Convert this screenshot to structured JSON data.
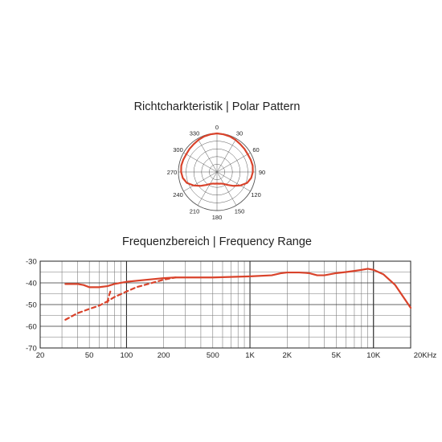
{
  "polar": {
    "title": "Richtcharkteristik | Polar Pattern",
    "angle_labels": [
      "0",
      "30",
      "60",
      "90",
      "120",
      "150",
      "180",
      "210",
      "240",
      "270",
      "300",
      "330"
    ],
    "chart_data": {
      "type": "line",
      "subtype": "polar",
      "series_color": "#d9432b",
      "angles_deg": [
        0,
        10,
        20,
        30,
        40,
        50,
        60,
        70,
        80,
        90,
        100,
        110,
        120,
        130,
        140,
        150,
        160,
        170,
        180,
        190,
        200,
        210,
        220,
        230,
        240,
        250,
        260,
        270,
        280,
        290,
        300,
        310,
        320,
        330,
        340,
        350
      ],
      "radius_frac": [
        1.0,
        0.99,
        0.98,
        0.96,
        0.94,
        0.93,
        0.92,
        0.93,
        0.94,
        0.93,
        0.9,
        0.83,
        0.7,
        0.56,
        0.44,
        0.36,
        0.32,
        0.31,
        0.3,
        0.31,
        0.32,
        0.36,
        0.44,
        0.56,
        0.7,
        0.83,
        0.9,
        0.93,
        0.94,
        0.93,
        0.92,
        0.93,
        0.94,
        0.96,
        0.98,
        0.99
      ],
      "rings": 5
    }
  },
  "freq": {
    "title": "Frequenzbereich | Frequency Range",
    "chart_data": {
      "type": "line",
      "xscale": "log",
      "xlim": [
        20,
        20000
      ],
      "ylim": [
        -70,
        -30
      ],
      "grid": true,
      "x_tick_values": [
        20,
        50,
        100,
        200,
        500,
        1000,
        2000,
        5000,
        10000,
        20000
      ],
      "x_tick_labels": [
        "20",
        "50",
        "100",
        "200",
        "500",
        "1K",
        "2K",
        "5K",
        "10K",
        "20KHz"
      ],
      "y_tick_values": [
        -30,
        -40,
        -50,
        -60,
        -70
      ],
      "y_tick_labels": [
        "-30",
        "-40",
        "-50",
        "-60",
        "-70"
      ],
      "series": [
        {
          "color": "#d9432b",
          "style": "solid",
          "x": [
            32,
            40,
            45,
            50,
            60,
            70,
            80,
            100,
            150,
            200,
            250,
            300,
            500,
            1000,
            1500,
            1800,
            2000,
            2500,
            3000,
            3500,
            4000,
            5000,
            6000,
            7000,
            8000,
            9000,
            10000,
            12000,
            15000,
            20000
          ],
          "y": [
            -40.5,
            -40.5,
            -41,
            -42,
            -42,
            -41.5,
            -40.5,
            -39.5,
            -38.5,
            -37.8,
            -37.5,
            -37.5,
            -37.5,
            -37,
            -36.5,
            -35.5,
            -35.2,
            -35.2,
            -35.5,
            -36.5,
            -36.5,
            -35.5,
            -35,
            -34.5,
            -34,
            -33.5,
            -34,
            -36,
            -41,
            -51.5
          ]
        },
        {
          "color": "#d9432b",
          "style": "dashed",
          "x": [
            32,
            40,
            50,
            60,
            70,
            80,
            100,
            120,
            150,
            200,
            250
          ],
          "y": [
            -57,
            -54,
            -52,
            -50.5,
            -48.5,
            -46.5,
            -44,
            -42,
            -40.5,
            -38.5,
            -37.5
          ]
        },
        {
          "color": "#d9432b",
          "style": "dashed",
          "x": [
            70,
            72,
            74,
            76
          ],
          "y": [
            -49,
            -46,
            -44,
            -43
          ]
        }
      ]
    }
  }
}
